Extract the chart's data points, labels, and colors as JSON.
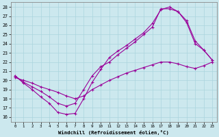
{
  "xlabel": "Windchill (Refroidissement éolien,°C)",
  "xlim": [
    -0.5,
    23.5
  ],
  "ylim": [
    15.5,
    28.5
  ],
  "yticks": [
    16,
    17,
    18,
    19,
    20,
    21,
    22,
    23,
    24,
    25,
    26,
    27,
    28
  ],
  "xticks": [
    0,
    1,
    2,
    3,
    4,
    5,
    6,
    7,
    8,
    9,
    10,
    11,
    12,
    13,
    14,
    15,
    16,
    17,
    18,
    19,
    20,
    21,
    22,
    23
  ],
  "bg_color": "#cce8ee",
  "grid_color": "#aad4dd",
  "line_color": "#990099",
  "line1_x": [
    0,
    1,
    2,
    3,
    4,
    5,
    6,
    7,
    8,
    9,
    10,
    11,
    12,
    13,
    14,
    15,
    16,
    17,
    18,
    19,
    20,
    21,
    22,
    23
  ],
  "line1_y": [
    20.5,
    19.7,
    19.0,
    18.2,
    17.5,
    16.5,
    16.3,
    16.4,
    18.0,
    19.8,
    21.2,
    22.5,
    23.2,
    23.8,
    24.5,
    25.2,
    26.2,
    27.7,
    28.0,
    27.5,
    26.3,
    24.0,
    23.3,
    22.2
  ],
  "line2_x": [
    0,
    1,
    2,
    3,
    4,
    5,
    6,
    7,
    8,
    9,
    10,
    11,
    12,
    13,
    14,
    15,
    16,
    17,
    18,
    19,
    20,
    21,
    22,
    23
  ],
  "line2_y": [
    20.5,
    19.8,
    19.3,
    18.8,
    18.2,
    17.5,
    17.2,
    17.5,
    19.0,
    20.5,
    21.5,
    22.0,
    22.8,
    23.5,
    24.2,
    25.0,
    25.8,
    27.8,
    27.8,
    27.5,
    26.5,
    24.3,
    23.3,
    22.2
  ],
  "line3_x": [
    0,
    1,
    2,
    3,
    4,
    5,
    6,
    7,
    8,
    9,
    10,
    11,
    12,
    13,
    14,
    15,
    16,
    17,
    18,
    19,
    20,
    21,
    22,
    23
  ],
  "line3_y": [
    20.3,
    20.0,
    19.7,
    19.3,
    19.0,
    18.7,
    18.3,
    18.0,
    18.3,
    19.0,
    19.5,
    20.0,
    20.4,
    20.8,
    21.1,
    21.4,
    21.7,
    22.0,
    22.0,
    21.8,
    21.5,
    21.3,
    21.6,
    22.0
  ]
}
